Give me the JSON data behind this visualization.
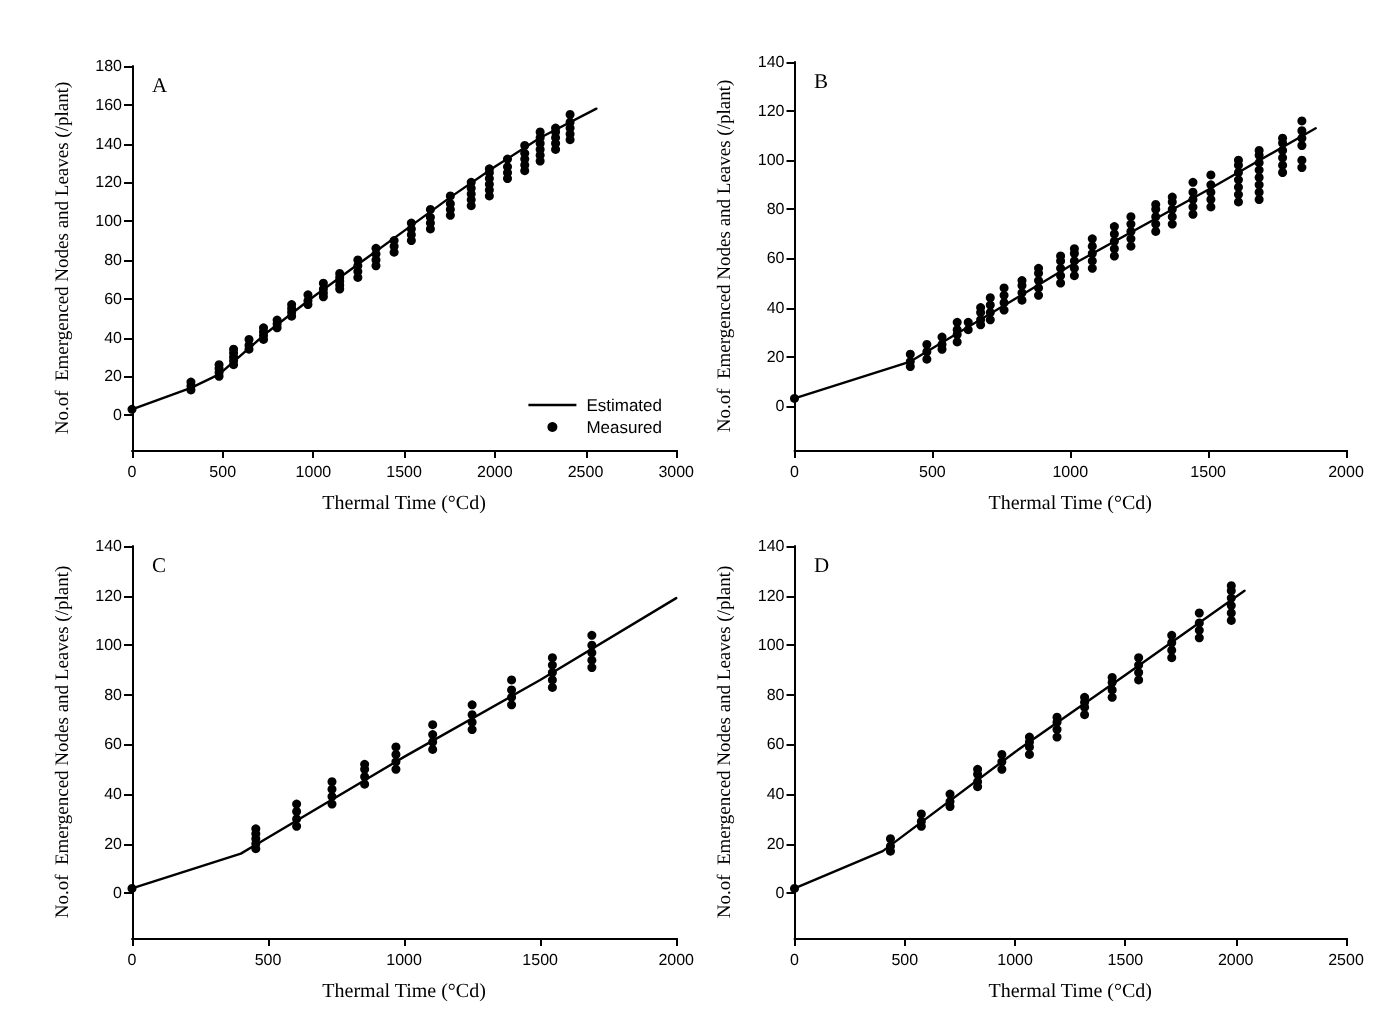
{
  "chart_data": [
    {
      "type": "scatter",
      "title": "A",
      "xlabel": "Thermal Time (°Cd)",
      "ylabel": "No.of  Emergenced Nodes and Leaves (/plant)",
      "xlim": [
        0,
        3000
      ],
      "xticks": [
        0,
        500,
        1000,
        1500,
        2000,
        2500,
        3000
      ],
      "ylim": [
        -18,
        180
      ],
      "yticks": [
        0,
        20,
        40,
        60,
        80,
        100,
        120,
        140,
        160,
        180
      ],
      "legend": "bottom right",
      "series": [
        {
          "name": "Estimated",
          "type": "line",
          "color": "#000000",
          "marker": "none",
          "x": [
            0,
            325,
            480,
            750,
            1000,
            1250,
            1500,
            1750,
            2000,
            2250,
            2560
          ],
          "values": [
            3,
            14,
            21,
            43,
            61,
            78,
            95,
            112,
            128,
            143,
            158
          ]
        },
        {
          "name": "Measured",
          "type": "scatter",
          "color": "#000000",
          "marker": "circle",
          "x": [
            0,
            325,
            325,
            325,
            480,
            480,
            480,
            480,
            560,
            560,
            560,
            560,
            560,
            645,
            645,
            645,
            725,
            725,
            725,
            725,
            800,
            800,
            800,
            880,
            880,
            880,
            880,
            970,
            970,
            970,
            1055,
            1055,
            1055,
            1055,
            1145,
            1145,
            1145,
            1145,
            1145,
            1245,
            1245,
            1245,
            1245,
            1345,
            1345,
            1345,
            1345,
            1445,
            1445,
            1445,
            1540,
            1540,
            1540,
            1540,
            1645,
            1645,
            1645,
            1645,
            1755,
            1755,
            1755,
            1755,
            1870,
            1870,
            1870,
            1870,
            1870,
            1970,
            1970,
            1970,
            1970,
            1970,
            1970,
            2070,
            2070,
            2070,
            2070,
            2165,
            2165,
            2165,
            2165,
            2165,
            2250,
            2250,
            2250,
            2250,
            2250,
            2250,
            2335,
            2335,
            2335,
            2335,
            2335,
            2415,
            2415,
            2415,
            2415,
            2415
          ],
          "values": [
            3,
            13,
            15,
            17,
            20,
            22,
            24,
            26,
            26,
            28,
            30,
            32,
            34,
            34,
            36,
            39,
            39,
            41,
            43,
            45,
            45,
            47,
            49,
            51,
            53,
            55,
            57,
            57,
            59,
            62,
            61,
            63,
            65,
            68,
            65,
            67,
            69,
            71,
            73,
            71,
            74,
            77,
            80,
            77,
            80,
            83,
            86,
            84,
            87,
            90,
            90,
            93,
            96,
            99,
            96,
            99,
            102,
            106,
            103,
            106,
            109,
            113,
            108,
            111,
            114,
            117,
            120,
            113,
            116,
            119,
            122,
            125,
            127,
            122,
            125,
            128,
            132,
            126,
            129,
            132,
            135,
            139,
            131,
            134,
            137,
            140,
            143,
            146,
            137,
            140,
            143,
            146,
            148,
            142,
            145,
            148,
            151,
            155
          ]
        }
      ]
    },
    {
      "type": "scatter",
      "title": "B",
      "xlabel": "Thermal Time (°Cd)",
      "ylabel": "No.of  Emergenced Nodes and Leaves (/plant)",
      "xlim": [
        0,
        2000
      ],
      "xticks": [
        0,
        500,
        1000,
        1500,
        2000
      ],
      "ylim": [
        -18,
        140
      ],
      "yticks": [
        0,
        20,
        40,
        60,
        80,
        100,
        120,
        140
      ],
      "series": [
        {
          "type": "line",
          "color": "#000000",
          "marker": "none",
          "x": [
            0,
            420,
            1000,
            1500,
            1890
          ],
          "values": [
            3,
            18,
            57,
            88,
            113
          ]
        },
        {
          "type": "scatter",
          "color": "#000000",
          "marker": "circle",
          "x": [
            0,
            420,
            420,
            420,
            480,
            480,
            480,
            535,
            535,
            535,
            590,
            590,
            590,
            590,
            630,
            630,
            675,
            675,
            675,
            675,
            710,
            710,
            710,
            710,
            760,
            760,
            760,
            760,
            825,
            825,
            825,
            825,
            885,
            885,
            885,
            885,
            885,
            965,
            965,
            965,
            965,
            965,
            1015,
            1015,
            1015,
            1015,
            1015,
            1080,
            1080,
            1080,
            1080,
            1080,
            1160,
            1160,
            1160,
            1160,
            1160,
            1220,
            1220,
            1220,
            1220,
            1220,
            1310,
            1310,
            1310,
            1310,
            1310,
            1370,
            1370,
            1370,
            1370,
            1370,
            1445,
            1445,
            1445,
            1445,
            1445,
            1510,
            1510,
            1510,
            1510,
            1510,
            1610,
            1610,
            1610,
            1610,
            1610,
            1610,
            1610,
            1685,
            1685,
            1685,
            1685,
            1685,
            1685,
            1685,
            1685,
            1770,
            1770,
            1770,
            1770,
            1770,
            1770,
            1840,
            1840,
            1840,
            1840,
            1840,
            1840
          ],
          "values": [
            3,
            16,
            18,
            21,
            19,
            22,
            25,
            23,
            25,
            28,
            26,
            29,
            31,
            34,
            31,
            34,
            33,
            35,
            38,
            40,
            35,
            38,
            41,
            44,
            39,
            42,
            45,
            48,
            43,
            46,
            49,
            51,
            45,
            48,
            51,
            54,
            56,
            50,
            53,
            56,
            59,
            61,
            53,
            56,
            59,
            62,
            64,
            56,
            59,
            62,
            65,
            68,
            61,
            64,
            67,
            70,
            73,
            65,
            68,
            71,
            74,
            77,
            71,
            74,
            77,
            80,
            82,
            74,
            77,
            80,
            83,
            85,
            78,
            81,
            84,
            87,
            91,
            81,
            84,
            87,
            90,
            94,
            83,
            86,
            89,
            92,
            95,
            98,
            100,
            84,
            87,
            90,
            93,
            96,
            99,
            102,
            104,
            95,
            98,
            101,
            104,
            107,
            109,
            97,
            100,
            106,
            109,
            112,
            116
          ]
        }
      ]
    },
    {
      "type": "scatter",
      "title": "C",
      "xlabel": "Thermal Time (°Cd)",
      "ylabel": "No.of  Emergenced Nodes and Leaves (/plant)",
      "xlim": [
        0,
        2000
      ],
      "xticks": [
        0,
        500,
        1000,
        1500,
        2000
      ],
      "ylim": [
        -18,
        140
      ],
      "yticks": [
        0,
        20,
        40,
        60,
        80,
        100,
        120,
        140
      ],
      "series": [
        {
          "type": "line",
          "color": "#000000",
          "marker": "none",
          "x": [
            0,
            400,
            1000,
            1500,
            2000
          ],
          "values": [
            2,
            16,
            55,
            86,
            119
          ]
        },
        {
          "type": "scatter",
          "color": "#000000",
          "marker": "circle",
          "x": [
            0,
            455,
            455,
            455,
            455,
            455,
            605,
            605,
            605,
            605,
            735,
            735,
            735,
            735,
            855,
            855,
            855,
            855,
            970,
            970,
            970,
            970,
            1105,
            1105,
            1105,
            1105,
            1250,
            1250,
            1250,
            1250,
            1395,
            1395,
            1395,
            1395,
            1545,
            1545,
            1545,
            1545,
            1545,
            1690,
            1690,
            1690,
            1690,
            1690
          ],
          "values": [
            2,
            18,
            20,
            22,
            24,
            26,
            27,
            30,
            33,
            36,
            36,
            39,
            42,
            45,
            44,
            47,
            50,
            52,
            50,
            53,
            56,
            59,
            58,
            61,
            64,
            68,
            66,
            69,
            72,
            76,
            76,
            79,
            82,
            86,
            83,
            86,
            89,
            92,
            95,
            91,
            94,
            97,
            100,
            104
          ]
        }
      ]
    },
    {
      "type": "scatter",
      "title": "D",
      "xlabel": "Thermal Time (°Cd)",
      "ylabel": "No.of  Emergenced Nodes and Leaves (/plant)",
      "xlim": [
        0,
        2500
      ],
      "xticks": [
        0,
        500,
        1000,
        1500,
        2000,
        2500
      ],
      "ylim": [
        -18,
        140
      ],
      "yticks": [
        0,
        20,
        40,
        60,
        80,
        100,
        120,
        140
      ],
      "series": [
        {
          "type": "line",
          "color": "#000000",
          "marker": "none",
          "x": [
            0,
            400,
            1000,
            1500,
            2040
          ],
          "values": [
            2,
            17,
            57,
            88,
            122
          ]
        },
        {
          "type": "scatter",
          "color": "#000000",
          "marker": "circle",
          "x": [
            0,
            435,
            435,
            435,
            575,
            575,
            575,
            705,
            705,
            705,
            830,
            830,
            830,
            830,
            940,
            940,
            940,
            1065,
            1065,
            1065,
            1065,
            1190,
            1190,
            1190,
            1190,
            1315,
            1315,
            1315,
            1315,
            1440,
            1440,
            1440,
            1440,
            1560,
            1560,
            1560,
            1560,
            1710,
            1710,
            1710,
            1710,
            1835,
            1835,
            1835,
            1835,
            1980,
            1980,
            1980,
            1980,
            1980,
            1980
          ],
          "values": [
            2,
            17,
            19,
            22,
            27,
            29,
            32,
            35,
            37,
            40,
            43,
            45,
            48,
            50,
            50,
            53,
            56,
            56,
            59,
            61,
            63,
            63,
            66,
            69,
            71,
            72,
            75,
            77,
            79,
            79,
            82,
            85,
            87,
            86,
            89,
            92,
            95,
            95,
            98,
            101,
            104,
            103,
            106,
            109,
            113,
            110,
            113,
            116,
            119,
            122,
            124
          ]
        }
      ]
    }
  ]
}
